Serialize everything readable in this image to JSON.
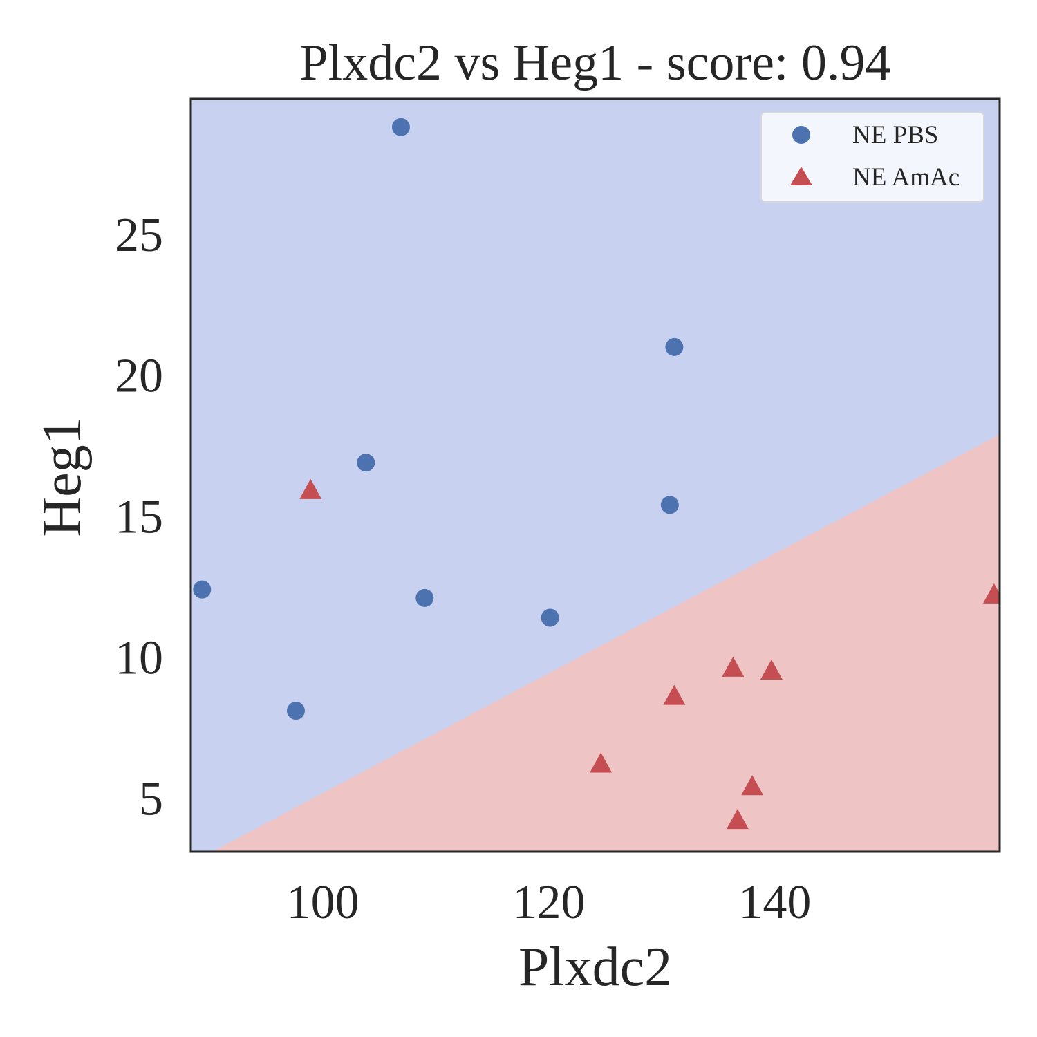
{
  "chart_data": {
    "type": "scatter",
    "title": "Plxdc2 vs Heg1 - score: 0.94",
    "xlabel": "Plxdc2",
    "ylabel": "Heg1",
    "xlim": [
      88.3,
      159.9
    ],
    "ylim": [
      3.1,
      29.8
    ],
    "xticks": [
      100,
      120,
      140
    ],
    "yticks": [
      5,
      10,
      15,
      20,
      25
    ],
    "grid": false,
    "legend_position": "top-right",
    "decision_boundary": {
      "description": "linear classifier regions",
      "line": [
        [
          88.3,
          2.7
        ],
        [
          159.9,
          17.9
        ]
      ],
      "region_above": "NE PBS",
      "region_below": "NE AmAc"
    },
    "colors": {
      "pbs_marker": "#4c72b0",
      "amac_marker": "#c44e52",
      "pbs_region": "#c9d1f1",
      "amac_region": "#efc4c4",
      "axis": "#262626"
    },
    "series": [
      {
        "name": "NE PBS",
        "marker": "circle",
        "points": [
          [
            106.9,
            28.8
          ],
          [
            131.1,
            21.0
          ],
          [
            103.8,
            16.9
          ],
          [
            130.7,
            15.4
          ],
          [
            89.3,
            12.4
          ],
          [
            109.0,
            12.1
          ],
          [
            120.1,
            11.4
          ],
          [
            97.6,
            8.1
          ]
        ]
      },
      {
        "name": "NE AmAc",
        "marker": "triangle",
        "points": [
          [
            98.9,
            15.9
          ],
          [
            159.4,
            12.2
          ],
          [
            136.3,
            9.6
          ],
          [
            139.7,
            9.5
          ],
          [
            131.1,
            8.6
          ],
          [
            124.6,
            6.2
          ],
          [
            138.0,
            5.4
          ],
          [
            136.7,
            4.2
          ]
        ]
      }
    ]
  }
}
